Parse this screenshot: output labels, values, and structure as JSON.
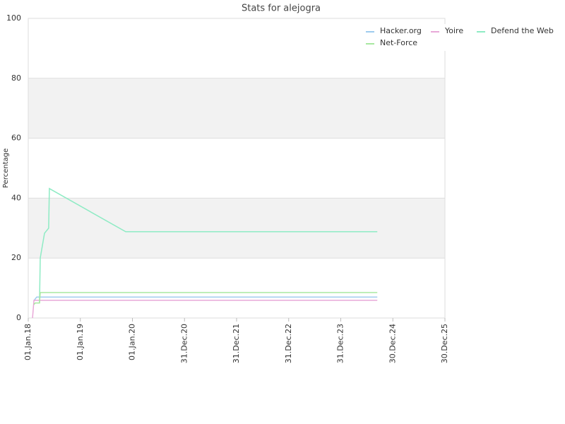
{
  "chart_data": {
    "type": "line",
    "title": "Stats for alejogra",
    "y_label": "Percentage",
    "series": [
      {
        "name": "Hacker.org",
        "color": "#9ecbee",
        "x": [
          "2018-02-10",
          "2018-03-01",
          "2024-09-12"
        ],
        "values": [
          5.8,
          7,
          7
        ]
      },
      {
        "name": "Yoire",
        "color": "#e8a8d8",
        "x": [
          "2018-01-31",
          "2018-02-10",
          "2024-09-12"
        ],
        "values": [
          0,
          5.9,
          5.9
        ]
      },
      {
        "name": "Defend the Web",
        "color": "#8eebc4",
        "x": [
          "2018-03-21",
          "2018-03-26",
          "2018-04-25",
          "2018-05-24",
          "2018-05-29",
          "2019-11-15",
          "2024-09-12"
        ],
        "values": [
          5,
          20,
          28.3,
          30,
          43.2,
          28.8,
          28.8
        ]
      },
      {
        "name": "Net-Force",
        "color": "#a8e8a0",
        "x": [
          "2018-02-10",
          "2018-02-19",
          "2018-03-21",
          "2018-03-26",
          "2024-09-12"
        ],
        "values": [
          4.5,
          5,
          5,
          8.5,
          8.5
        ]
      }
    ],
    "xlim": [
      "2018-01-01",
      "2025-12-30"
    ],
    "xticks": [
      {
        "value": "2018-01-01",
        "label": "01.Jan.18"
      },
      {
        "value": "2019-01-01",
        "label": "01.Jan.19"
      },
      {
        "value": "2020-01-01",
        "label": "01.Jan.20"
      },
      {
        "value": "2020-12-31",
        "label": "31.Dec.20"
      },
      {
        "value": "2021-12-31",
        "label": "31.Dec.21"
      },
      {
        "value": "2022-12-31",
        "label": "31.Dec.22"
      },
      {
        "value": "2023-12-31",
        "label": "31.Dec.23"
      },
      {
        "value": "2024-12-30",
        "label": "30.Dec.24"
      },
      {
        "value": "2025-12-30",
        "label": "30.Dec.25"
      }
    ],
    "ylim": [
      0,
      100
    ],
    "yticks": [
      0,
      20,
      40,
      60,
      80,
      100
    ],
    "grid": true,
    "legend": "upper right"
  }
}
